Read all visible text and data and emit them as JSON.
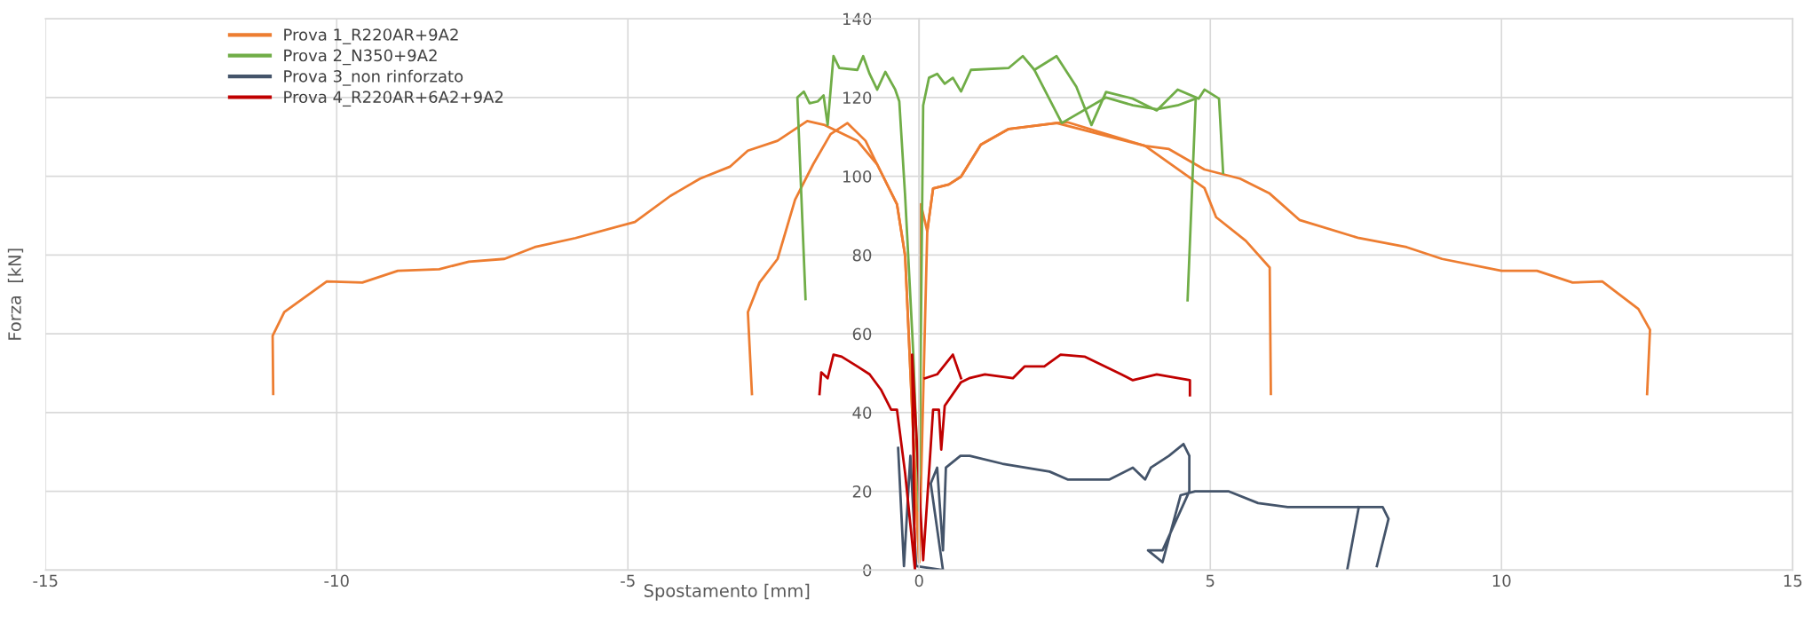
{
  "chart_data": {
    "type": "line",
    "xlabel": "Spostamento [mm]",
    "ylabel": "Forza  [kN]",
    "xlim": [
      -15,
      15
    ],
    "xticks": [
      -15,
      -10,
      -5,
      0,
      5,
      10,
      15
    ],
    "ylim": [
      0,
      140
    ],
    "yticks": [
      0,
      20,
      40,
      60,
      80,
      100,
      120,
      140
    ],
    "grid": true,
    "legend": "top left",
    "marker": "none",
    "line_style": "solid",
    "series": [
      {
        "name": "Prova 1_R220AR+9A2",
        "color": "#ed7d31",
        "x": [
          -11.09,
          -11.1,
          -10.9,
          -10.17,
          -9.56,
          -8.95,
          -8.24,
          -7.73,
          -7.12,
          -6.6,
          -5.9,
          -4.88,
          -4.27,
          -3.76,
          -3.25,
          -2.94,
          -2.43,
          -1.92,
          -1.62,
          -1.06,
          -0.72,
          -0.38,
          -0.24,
          0,
          0.03,
          0.14,
          0.24,
          0.51,
          0.72,
          1.06,
          1.54,
          2.36,
          2.55,
          3.88,
          4.29,
          4.9,
          5.51,
          6.02,
          6.53,
          7.55,
          8.37,
          8.98,
          10,
          10.61,
          11.22,
          11.73,
          12.35,
          12.55,
          12.5
        ],
        "values": [
          44.7,
          59.5,
          65.5,
          73.3,
          73,
          76,
          76.4,
          78.3,
          79,
          82,
          84.3,
          88.4,
          95,
          99.4,
          102.4,
          106.5,
          109,
          114,
          113,
          109,
          103,
          92.9,
          79.8,
          2,
          92.9,
          86,
          96.9,
          97.9,
          99.9,
          108,
          112,
          113.5,
          113.7,
          107.7,
          106.9,
          101.7,
          99.4,
          95.6,
          88.9,
          84.3,
          82,
          79,
          76,
          76,
          73,
          73.3,
          66.3,
          61,
          44.7
        ]
      },
      {
        "color": "#ed7d31",
        "x": [
          -2.87,
          -2.94,
          -2.74,
          -2.43,
          -2.13,
          -1.82,
          -1.52,
          -1.23,
          -0.92,
          -0.72,
          -0.38,
          -0.24,
          0,
          0.14,
          0.24,
          0.51,
          0.72,
          1.06,
          1.54,
          2.36,
          3.88,
          4.9,
          5.1,
          5.61,
          6.02,
          6.04
        ],
        "values": [
          44.7,
          65.5,
          73,
          79,
          94,
          103,
          110.7,
          113.5,
          109,
          103,
          92.9,
          79.8,
          2,
          86,
          96.9,
          97.9,
          99.9,
          108,
          112,
          113.5,
          107.7,
          97,
          89.6,
          83.6,
          76.8,
          44.7
        ]
      },
      {
        "name": "Prova 2_N350+9A2",
        "color": "#70ad47",
        "x": [
          -1.95,
          -2.09,
          -1.98,
          -1.88,
          -1.74,
          -1.64,
          -1.57,
          -1.47,
          -1.37,
          -1.06,
          -0.96,
          -0.85,
          -0.72,
          -0.58,
          -0.41,
          -0.34,
          -0.24,
          -0.1,
          0,
          0.07,
          0.17,
          0.31,
          0.44,
          0.58,
          0.72,
          0.89,
          1.54,
          1.78,
          1.98,
          2.36,
          2.7,
          2.96,
          3.21,
          3.67,
          4.08,
          4.44,
          4.8,
          4.9,
          5.15,
          5.22
        ],
        "values": [
          68.8,
          120,
          121.5,
          118.5,
          119,
          120.5,
          113,
          130.5,
          127.5,
          127,
          130.5,
          126,
          122,
          126.5,
          122,
          119,
          95,
          55,
          15,
          118,
          125,
          126,
          123.5,
          125,
          121.5,
          127,
          127.5,
          130.5,
          127,
          130.5,
          122.7,
          113,
          121.4,
          119.7,
          116.7,
          122,
          119.7,
          122,
          119.7,
          100.9
        ]
      },
      {
        "color": "#70ad47",
        "x": [
          4.61,
          4.75,
          4.44,
          4.08,
          3.67,
          3.21,
          2.45,
          1.98
        ],
        "values": [
          68.5,
          119.7,
          118,
          117,
          118,
          120,
          113.5,
          127
        ]
      },
      {
        "name": "Prova 3_non rinforzato",
        "color": "#44546a",
        "x": [
          -0.36,
          -0.26,
          -0.15,
          -0.05,
          0.41,
          0.2,
          0.31,
          0.41,
          0.46,
          0.71,
          0.87,
          1.43,
          2.24,
          2.55,
          3.27,
          3.67,
          3.88,
          3.98,
          4.29,
          4.54,
          4.64,
          4.64,
          4.18,
          3.93,
          4.18,
          4.49,
          4.74,
          5.31,
          5.82,
          6.33,
          7.55,
          7.96,
          8.06,
          7.86
        ],
        "values": [
          31,
          1,
          29,
          1,
          0,
          22,
          26,
          5,
          26,
          29,
          29,
          27,
          25,
          23,
          23,
          26,
          23,
          26,
          29,
          32,
          29,
          20,
          5,
          5,
          2,
          19,
          20,
          20,
          17,
          16,
          16,
          16,
          13,
          1
        ]
      },
      {
        "color": "#44546a",
        "x": [
          7.55,
          7.35
        ],
        "values": [
          16,
          0
        ]
      },
      {
        "name": "Prova 4_R220AR+6A2+9A2",
        "color": "#c00000",
        "x": [
          -1.71,
          -1.68,
          -1.57,
          -1.47,
          -1.33,
          -1.06,
          -0.85,
          -0.65,
          -0.48,
          -0.38,
          -0.24,
          -0.07,
          -0.12,
          0.07,
          0.17,
          0.24,
          0.34,
          0.38,
          0.44,
          0.72,
          0.86,
          1.13,
          1.61,
          1.81,
          2.15,
          2.43,
          2.84,
          3.47,
          3.67,
          4.08,
          4.65,
          4.65
        ],
        "values": [
          44.7,
          50.2,
          48.7,
          54.7,
          54.2,
          51.7,
          49.7,
          45.7,
          40.7,
          40.7,
          24.6,
          0,
          54.7,
          2.5,
          24.6,
          40.7,
          40.7,
          30.6,
          41.7,
          47.7,
          48.7,
          49.7,
          48.7,
          51.7,
          51.7,
          54.7,
          54.2,
          49.7,
          48.2,
          49.7,
          48.2,
          44.4
        ]
      },
      {
        "color": "#c00000",
        "x": [
          0.1,
          0.31,
          0.58,
          0.72
        ],
        "values": [
          48.7,
          49.7,
          54.7,
          48.7
        ]
      }
    ]
  }
}
